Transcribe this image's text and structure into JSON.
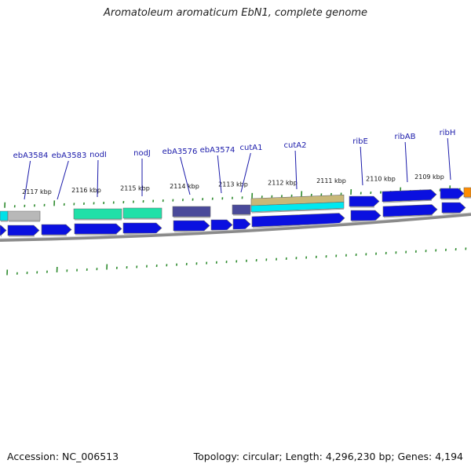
{
  "title": "Aromatoleum aromaticum EbN1, complete genome",
  "footer": {
    "accession": "Accession: NC_006513",
    "summary": "Topology: circular; Length: 4,296,230 bp; Genes: 4,194"
  },
  "colors": {
    "gene_label": "#1a1aaa",
    "tick": "#2e8b2e",
    "backbone": "#8a8a8a"
  },
  "scale_labels": [
    "2117 kbp",
    "2116 kbp",
    "2115 kbp",
    "2114 kbp",
    "2113 kbp",
    "2112 kbp",
    "2111 kbp",
    "2110 kbp",
    "2109 kbp"
  ],
  "gene_labels": [
    "ebA3584",
    "ebA3583",
    "nodI",
    "nodJ",
    "ebA3576",
    "ebA3574",
    "cutA1",
    "cutA2",
    "ribE",
    "ribAB",
    "ribH"
  ],
  "features": [
    {
      "track": "upper",
      "color": "#00e0e8"
    },
    {
      "track": "upper",
      "color": "#b8b8b8"
    },
    {
      "track": "upper",
      "color": "#20e0a8"
    },
    {
      "track": "upper",
      "color": "#20e0a8"
    },
    {
      "track": "upper",
      "color": "#4a4a9a"
    },
    {
      "track": "upper",
      "color": "#4a4a9a"
    },
    {
      "track": "upper",
      "color": "#c8b878"
    },
    {
      "track": "upper",
      "color": "#00e8f0"
    },
    {
      "track": "upper",
      "color": "#0a10e0"
    },
    {
      "track": "upper",
      "color": "#0a10e0"
    },
    {
      "track": "upper",
      "color": "#0a10e0"
    },
    {
      "track": "upper",
      "color": "#ff8c00"
    },
    {
      "track": "lower",
      "color": "#0a10e0"
    },
    {
      "track": "lower",
      "color": "#0a10e0"
    },
    {
      "track": "lower",
      "color": "#0a10e0"
    },
    {
      "track": "lower",
      "color": "#0a10e0"
    },
    {
      "track": "lower",
      "color": "#0a10e0"
    },
    {
      "track": "lower",
      "color": "#0a10e0"
    },
    {
      "track": "lower",
      "color": "#0a10e0"
    },
    {
      "track": "lower",
      "color": "#0a10e0"
    },
    {
      "track": "lower",
      "color": "#0a10e0"
    },
    {
      "track": "lower",
      "color": "#0a10e0"
    },
    {
      "track": "lower",
      "color": "#0a10e0"
    },
    {
      "track": "lower",
      "color": "#0a10e0"
    }
  ]
}
